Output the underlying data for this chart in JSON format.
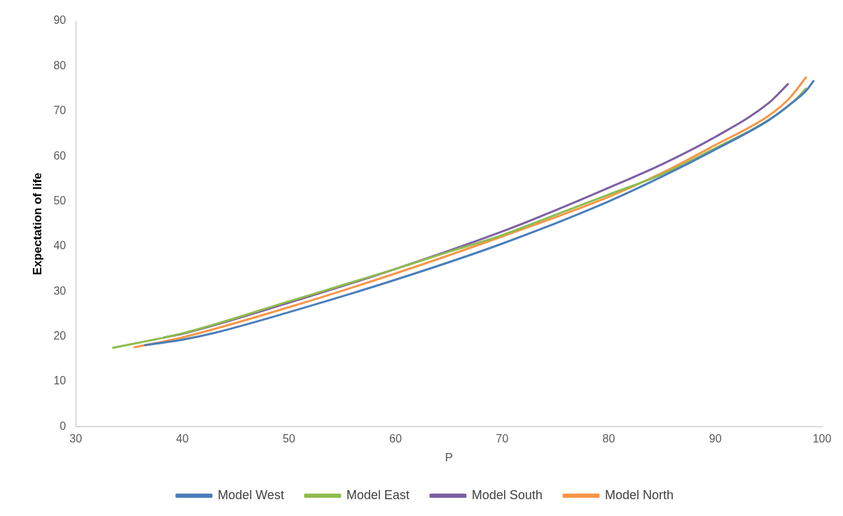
{
  "chart_data": {
    "type": "line",
    "xlabel": "P",
    "ylabel": "Expectation of life",
    "xlim": [
      30,
      100
    ],
    "xticks": [
      30,
      40,
      50,
      60,
      70,
      80,
      90,
      100
    ],
    "ylim": [
      0,
      90
    ],
    "yticks": [
      0,
      10,
      20,
      30,
      40,
      50,
      60,
      70,
      80,
      90
    ],
    "grid": false,
    "legend": "bottom",
    "marker": "none",
    "line_style": "solid",
    "series": [
      {
        "name": "Model West",
        "color": "#4a7ebb",
        "x": [
          36.5,
          40,
          43,
          50,
          60,
          70,
          80,
          85,
          90,
          95,
          97,
          98.5,
          99.2
        ],
        "values": [
          18.1,
          19.3,
          20.8,
          25.4,
          32.6,
          40.6,
          50,
          55.5,
          61.5,
          68,
          71.5,
          74.5,
          76.7
        ]
      },
      {
        "name": "Model East",
        "color": "#8fbc4f",
        "x": [
          33.5,
          40,
          50,
          60,
          65,
          70,
          75,
          80,
          85,
          90,
          95,
          97.5,
          98.5
        ],
        "values": [
          17.5,
          20.7,
          27.8,
          35,
          38.8,
          42.5,
          47,
          51.5,
          56,
          61.8,
          68,
          72.5,
          75
        ]
      },
      {
        "name": "Model South",
        "color": "#7d5fa5",
        "x": [
          38.3,
          40,
          50,
          60,
          70,
          75,
          80,
          85,
          90,
          95,
          96.8
        ],
        "values": [
          19.8,
          20.6,
          27.5,
          35,
          43.3,
          48,
          53,
          58.2,
          64.3,
          71.8,
          76
        ]
      },
      {
        "name": "Model North",
        "color": "#f79646",
        "x": [
          35.5,
          40,
          50,
          60,
          70,
          80,
          85,
          90,
          95,
          97,
          98.5
        ],
        "values": [
          17.6,
          19.8,
          26.5,
          34,
          42.2,
          51,
          56.3,
          62.5,
          69,
          73,
          77.5
        ]
      }
    ]
  }
}
